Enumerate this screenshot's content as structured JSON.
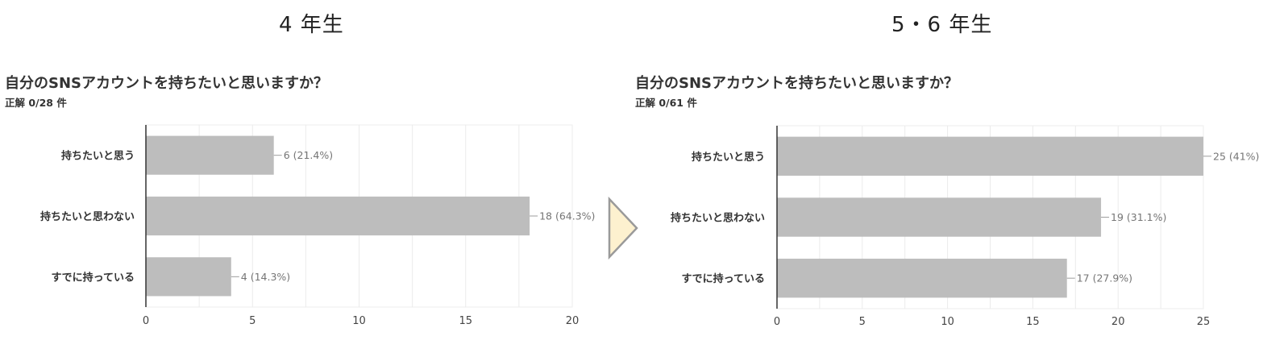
{
  "arrow": {
    "fill": "#fdf1cf",
    "stroke": "#9a9a9a"
  },
  "chart_data": [
    {
      "type": "bar",
      "orientation": "horizontal",
      "title": "4 年生",
      "question": "自分のSNSアカウントを持ちたいと思いますか？",
      "subtitle": "正解 0/28 件",
      "categories": [
        "持ちたいと思う",
        "持ちたいと思わない",
        "すでに持っている"
      ],
      "values": [
        6,
        18,
        4
      ],
      "labels": [
        "6 (21.4%)",
        "18 (64.3%)",
        "4 (14.3%)"
      ],
      "xlim": [
        0,
        20
      ],
      "xticks": [
        0,
        5,
        10,
        15,
        20
      ],
      "grid": true,
      "bar_color": "#bdbdbd"
    },
    {
      "type": "bar",
      "orientation": "horizontal",
      "title": "5・6 年生",
      "question": "自分のSNSアカウントを持ちたいと思いますか？",
      "subtitle": "正解 0/61 件",
      "categories": [
        "持ちたいと思う",
        "持ちたいと思わない",
        "すでに持っている"
      ],
      "values": [
        25,
        19,
        17
      ],
      "labels": [
        "25 (41%)",
        "19 (31.1%)",
        "17 (27.9%)"
      ],
      "xlim": [
        0,
        25
      ],
      "xticks": [
        0,
        5,
        10,
        15,
        20,
        25
      ],
      "grid": true,
      "bar_color": "#bdbdbd"
    }
  ]
}
